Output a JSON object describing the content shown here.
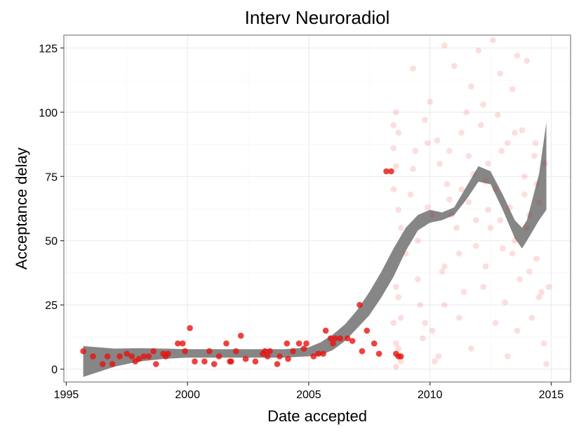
{
  "chart_data": {
    "type": "scatter",
    "title": "Interv Neuroradiol",
    "xlabel": "Date accepted",
    "ylabel": "Acceptance delay",
    "xlim": [
      1994.9,
      2015.8
    ],
    "ylim": [
      -5,
      130
    ],
    "x_ticks": [
      1995,
      2000,
      2005,
      2010,
      2015
    ],
    "x_tick_labels": [
      "1995",
      "2000",
      "2005",
      "2010",
      "2015"
    ],
    "y_ticks": [
      0,
      25,
      50,
      75,
      100,
      125
    ],
    "y_tick_labels": [
      "0",
      "25",
      "50",
      "75",
      "100",
      "125"
    ],
    "grid": true,
    "legend": "none",
    "colors": {
      "point": "#e8130f",
      "band": "#7f7f7f"
    },
    "smooth_band": {
      "x": [
        1995.7,
        1997,
        1998,
        1999,
        2000,
        2001,
        2002,
        2003,
        2004,
        2005,
        2005.5,
        2006,
        2006.5,
        2007,
        2007.5,
        2008,
        2008.5,
        2009,
        2009.5,
        2010,
        2010.5,
        2011,
        2011.5,
        2012,
        2012.5,
        2013,
        2013.5,
        2013.8,
        2014,
        2014.5,
        2014.8
      ],
      "lower": [
        -3,
        1,
        3,
        4,
        4.5,
        4.5,
        4.5,
        4.5,
        4.5,
        5,
        5.5,
        7.5,
        11,
        16,
        21,
        28,
        36,
        46,
        54,
        57,
        58,
        60,
        66,
        73,
        72,
        62,
        51,
        47,
        50,
        58,
        62
      ],
      "upper": [
        9,
        8,
        8.2,
        8,
        7.8,
        7.8,
        7.8,
        7.8,
        7.8,
        8.5,
        10.5,
        13.5,
        17.5,
        23,
        30,
        38,
        47,
        55,
        60,
        62,
        61,
        63,
        71,
        79,
        77,
        68,
        58,
        55,
        58,
        76,
        96
      ]
    },
    "series": [
      {
        "opacity": 0.8,
        "points": [
          [
            1995.7,
            7
          ],
          [
            1996.1,
            5
          ],
          [
            1996.5,
            2
          ],
          [
            1996.7,
            5
          ],
          [
            1996.9,
            2
          ],
          [
            1997.2,
            5
          ],
          [
            1997.5,
            6
          ],
          [
            1997.7,
            5
          ],
          [
            1997.85,
            3
          ],
          [
            1998.0,
            4
          ],
          [
            1998.2,
            5
          ],
          [
            1998.4,
            5
          ],
          [
            1998.6,
            7
          ],
          [
            1998.7,
            2
          ],
          [
            1999.0,
            6
          ],
          [
            1999.1,
            5
          ],
          [
            1999.2,
            6
          ],
          [
            1999.6,
            10
          ],
          [
            1999.8,
            10
          ],
          [
            1999.9,
            7
          ],
          [
            2000.1,
            16
          ],
          [
            2000.3,
            3
          ],
          [
            2000.7,
            3
          ],
          [
            2000.9,
            7
          ],
          [
            2001.1,
            2
          ],
          [
            2001.3,
            5
          ],
          [
            2001.6,
            10
          ],
          [
            2001.75,
            3
          ],
          [
            2001.8,
            3
          ],
          [
            2002.0,
            7
          ],
          [
            2002.2,
            13
          ],
          [
            2002.4,
            4
          ],
          [
            2002.8,
            3
          ],
          [
            2003.1,
            6
          ],
          [
            2003.2,
            7
          ],
          [
            2003.3,
            5
          ],
          [
            2003.4,
            7
          ],
          [
            2003.7,
            2
          ],
          [
            2003.8,
            5
          ],
          [
            2004.1,
            10
          ],
          [
            2004.15,
            4
          ],
          [
            2004.35,
            7
          ],
          [
            2004.6,
            10
          ],
          [
            2004.8,
            8
          ],
          [
            2004.9,
            10
          ],
          [
            2005.2,
            5
          ],
          [
            2005.4,
            6
          ],
          [
            2005.6,
            6
          ],
          [
            2005.7,
            15
          ],
          [
            2005.9,
            12
          ],
          [
            2006.0,
            10
          ],
          [
            2006.1,
            12
          ],
          [
            2006.3,
            12
          ],
          [
            2006.6,
            12
          ],
          [
            2006.8,
            11
          ],
          [
            2007.1,
            25
          ],
          [
            2007.2,
            7
          ],
          [
            2007.4,
            15
          ],
          [
            2007.7,
            10
          ],
          [
            2007.9,
            6
          ],
          [
            2008.2,
            77
          ],
          [
            2008.4,
            77
          ],
          [
            2008.6,
            6
          ],
          [
            2008.7,
            5
          ],
          [
            2008.8,
            5
          ]
        ]
      },
      {
        "opacity": 0.14,
        "points": [
          [
            2008.5,
            95
          ],
          [
            2008.6,
            100
          ],
          [
            2008.7,
            92
          ],
          [
            2008.5,
            86
          ],
          [
            2008.6,
            79
          ],
          [
            2008.8,
            55
          ],
          [
            2008.5,
            70
          ],
          [
            2008.7,
            62
          ],
          [
            2008.6,
            32
          ],
          [
            2008.7,
            28
          ],
          [
            2008.8,
            20
          ],
          [
            2008.5,
            18
          ],
          [
            2008.6,
            10
          ],
          [
            2008.7,
            8
          ],
          [
            2008.8,
            3
          ],
          [
            2008.6,
            1
          ],
          [
            2009.0,
            45
          ],
          [
            2009.2,
            68
          ],
          [
            2009.3,
            117
          ],
          [
            2009.4,
            85
          ],
          [
            2009.5,
            50
          ],
          [
            2009.6,
            25
          ],
          [
            2009.7,
            12
          ],
          [
            2009.8,
            97
          ],
          [
            2009.9,
            63
          ],
          [
            2010.0,
            104
          ],
          [
            2010.1,
            60
          ],
          [
            2010.2,
            3
          ],
          [
            2010.3,
            89
          ],
          [
            2010.4,
            80
          ],
          [
            2010.5,
            38
          ],
          [
            2010.6,
            126
          ],
          [
            2010.7,
            72
          ],
          [
            2010.8,
            85
          ],
          [
            2010.9,
            60
          ],
          [
            2011.0,
            118
          ],
          [
            2011.1,
            55
          ],
          [
            2011.2,
            45
          ],
          [
            2011.3,
            92
          ],
          [
            2011.4,
            30
          ],
          [
            2011.5,
            100
          ],
          [
            2011.6,
            65
          ],
          [
            2011.7,
            110
          ],
          [
            2011.8,
            76
          ],
          [
            2011.9,
            58
          ],
          [
            2012.0,
            124
          ],
          [
            2012.1,
            95
          ],
          [
            2012.2,
            103
          ],
          [
            2012.3,
            40
          ],
          [
            2012.4,
            80
          ],
          [
            2012.5,
            55
          ],
          [
            2012.6,
            128
          ],
          [
            2012.7,
            70
          ],
          [
            2012.8,
            99
          ],
          [
            2012.9,
            115
          ],
          [
            2013.0,
            47
          ],
          [
            2013.1,
            26
          ],
          [
            2013.2,
            88
          ],
          [
            2013.3,
            63
          ],
          [
            2013.4,
            109
          ],
          [
            2013.5,
            50
          ],
          [
            2013.6,
            122
          ],
          [
            2013.7,
            35
          ],
          [
            2013.8,
            93
          ],
          [
            2013.9,
            75
          ],
          [
            2014.0,
            120
          ],
          [
            2014.1,
            60
          ],
          [
            2014.2,
            20
          ],
          [
            2014.3,
            83
          ],
          [
            2014.4,
            43
          ],
          [
            2014.5,
            65
          ],
          [
            2014.6,
            30
          ],
          [
            2014.7,
            10
          ],
          [
            2014.8,
            2
          ],
          [
            2014.9,
            32
          ],
          [
            2010.1,
            15
          ],
          [
            2010.35,
            5
          ],
          [
            2010.6,
            25
          ],
          [
            2011.2,
            20
          ],
          [
            2011.7,
            8
          ],
          [
            2012.2,
            32
          ],
          [
            2012.7,
            18
          ],
          [
            2013.2,
            5
          ],
          [
            2013.6,
            15
          ],
          [
            2014.1,
            38
          ],
          [
            2014.5,
            28
          ],
          [
            2009.5,
            35
          ],
          [
            2009.8,
            18
          ],
          [
            2010.6,
            40
          ],
          [
            2011.3,
            70
          ],
          [
            2011.9,
            48
          ],
          [
            2012.4,
            62
          ],
          [
            2012.9,
            58
          ],
          [
            2013.4,
            45
          ],
          [
            2014.0,
            55
          ],
          [
            2014.4,
            72
          ],
          [
            2009.3,
            78
          ],
          [
            2009.9,
            88
          ],
          [
            2010.8,
            66
          ],
          [
            2011.6,
            83
          ],
          [
            2012.3,
            73
          ],
          [
            2012.95,
            85
          ],
          [
            2013.5,
            92
          ],
          [
            2013.9,
            68
          ],
          [
            2014.35,
            88
          ],
          [
            2014.75,
            80
          ]
        ]
      }
    ]
  }
}
